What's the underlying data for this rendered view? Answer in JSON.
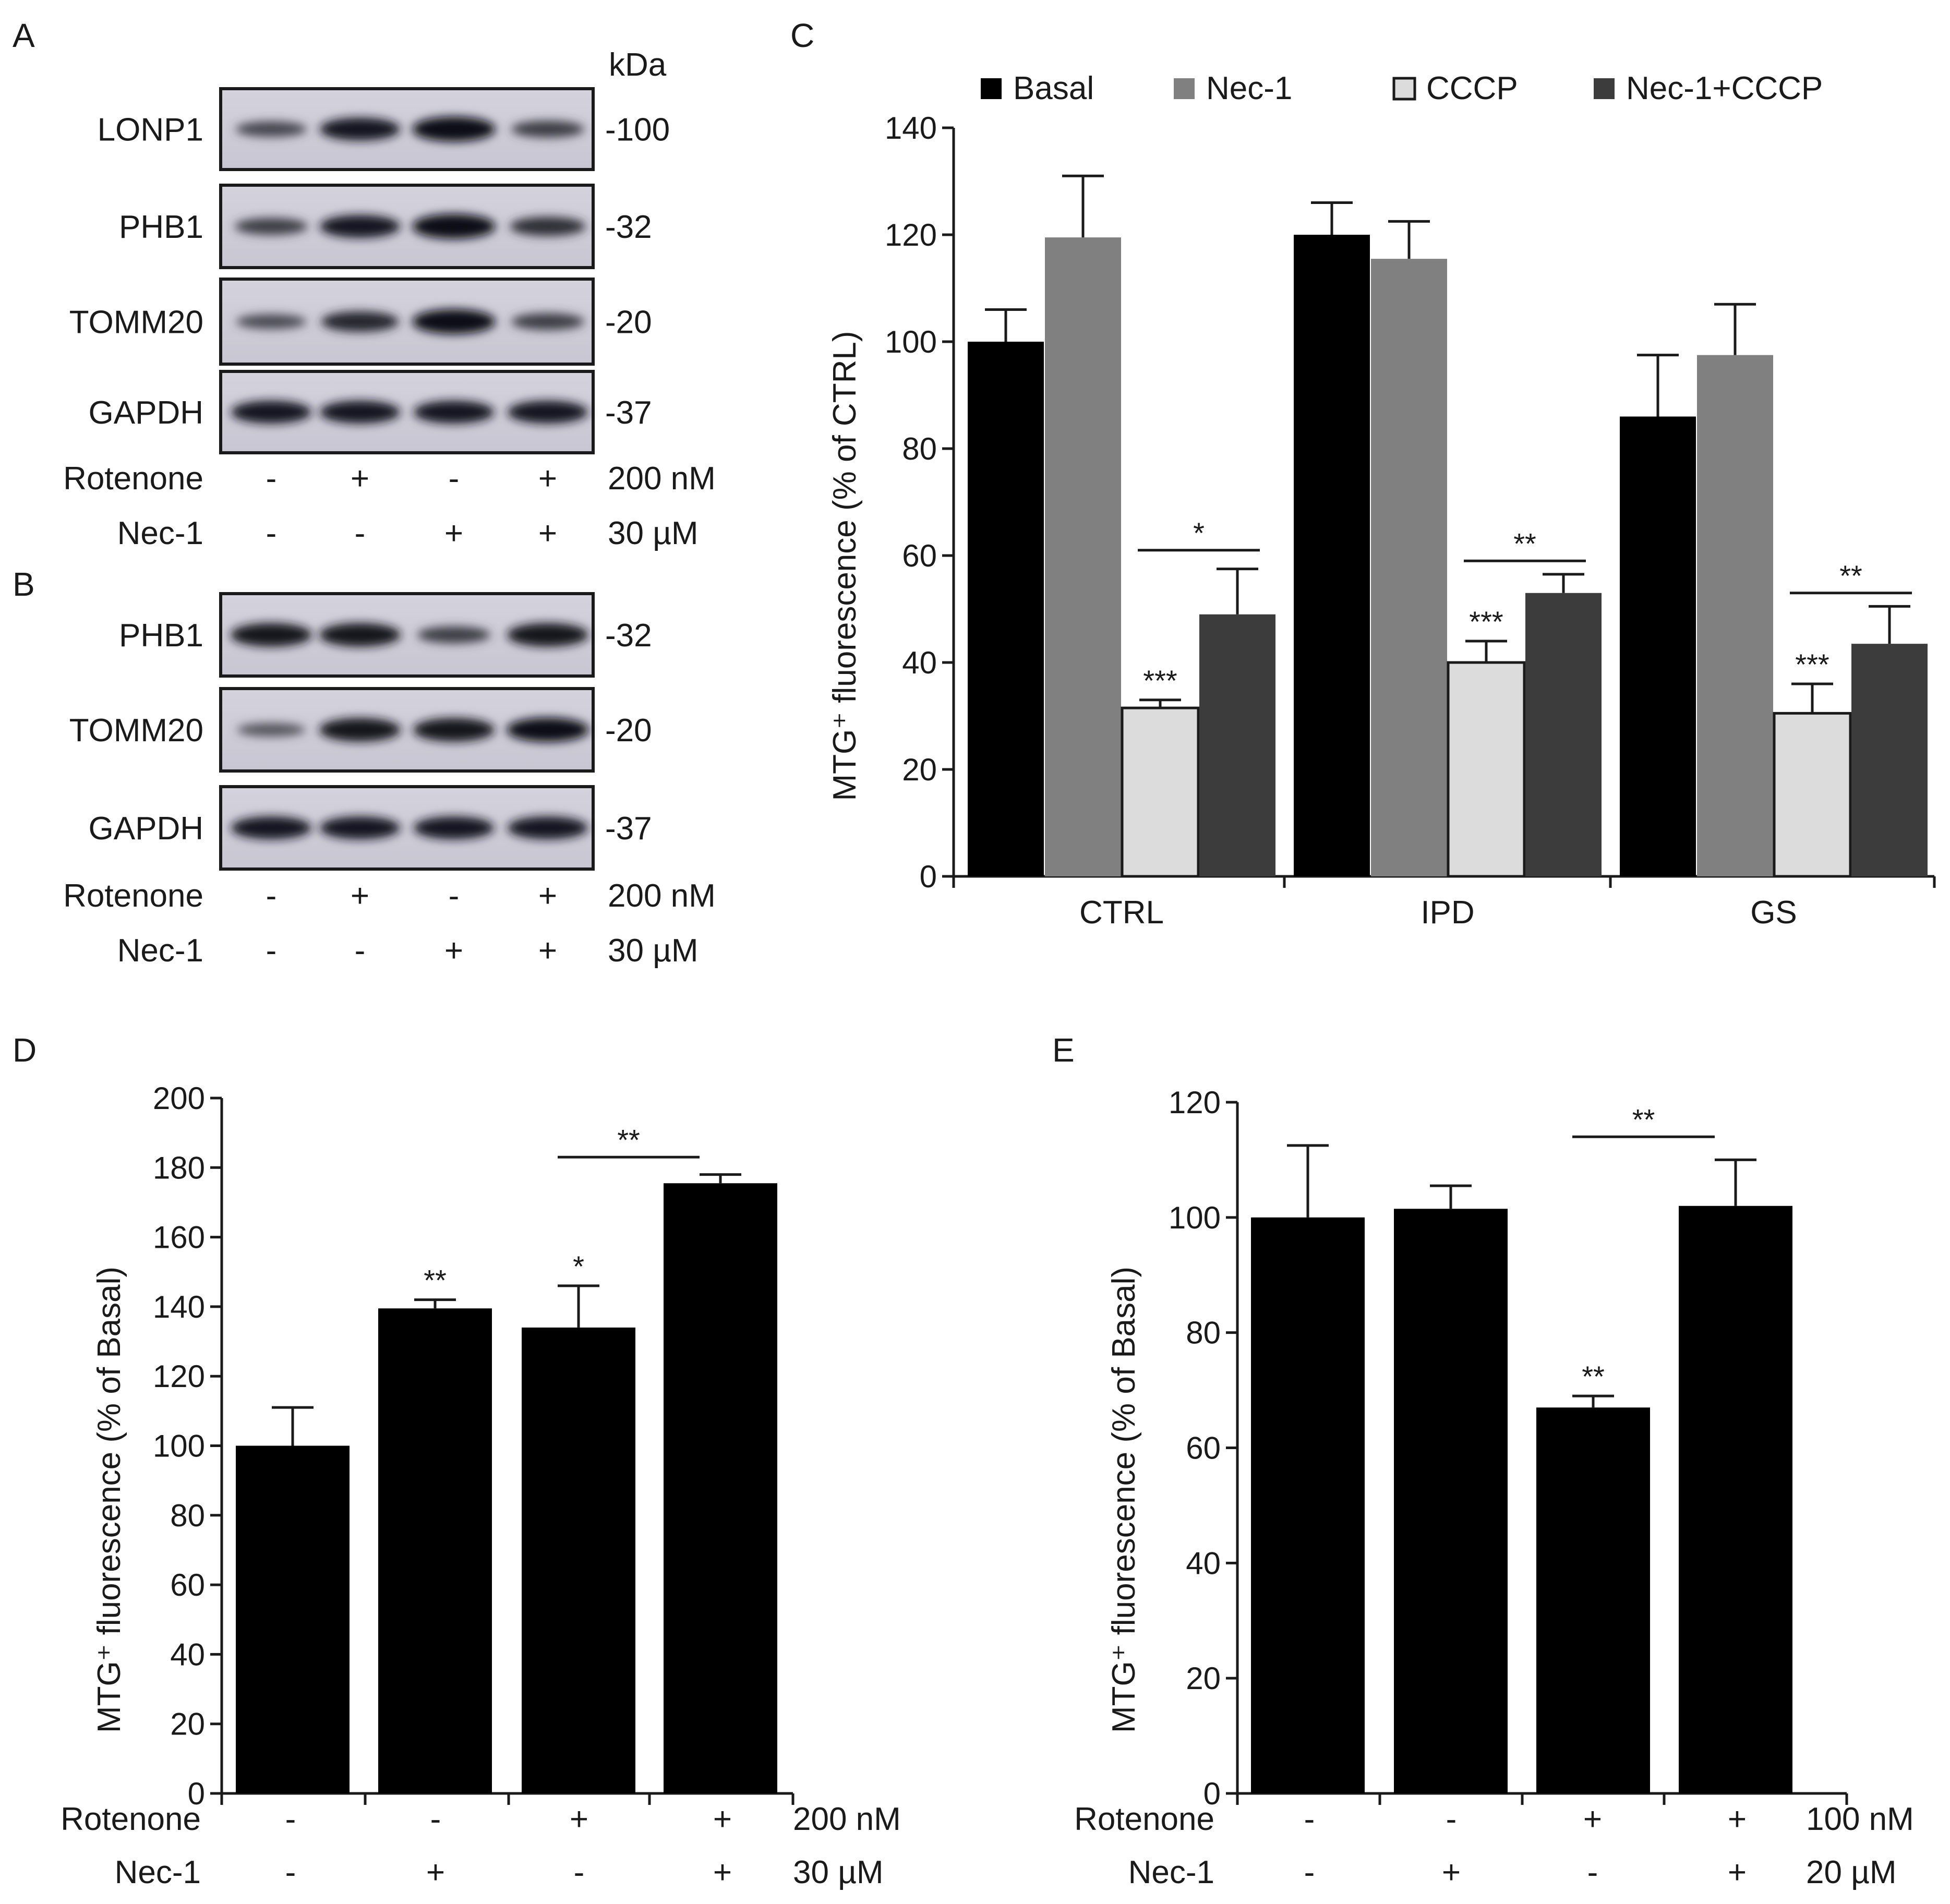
{
  "panel_letters": {
    "a": "A",
    "b": "B",
    "c": "C",
    "d": "D",
    "e": "E"
  },
  "blot_a": {
    "unit_label": "kDa",
    "bands": [
      {
        "label": "LONP1",
        "mw": "-100",
        "intensity": [
          0.35,
          0.85,
          1.0,
          0.45
        ]
      },
      {
        "label": "PHB1",
        "mw": "-32",
        "intensity": [
          0.45,
          0.85,
          1.0,
          0.6
        ]
      },
      {
        "label": "TOMM20",
        "mw": "-20",
        "intensity": [
          0.3,
          0.7,
          1.0,
          0.45
        ]
      },
      {
        "label": "GAPDH",
        "mw": "-37",
        "intensity": [
          0.85,
          0.85,
          0.85,
          0.85
        ]
      }
    ],
    "treatments": [
      {
        "label": "Rotenone",
        "signs": [
          "-",
          "+",
          "-",
          "+"
        ],
        "dose": "200 nM"
      },
      {
        "label": "Nec-1",
        "signs": [
          "-",
          "-",
          "+",
          "+"
        ],
        "dose": "30 µM"
      }
    ]
  },
  "blot_b": {
    "bands": [
      {
        "label": "PHB1",
        "mw": "-32",
        "intensity": [
          0.9,
          0.9,
          0.45,
          0.9
        ]
      },
      {
        "label": "TOMM20",
        "mw": "-20",
        "intensity": [
          0.2,
          0.9,
          0.9,
          0.95
        ]
      },
      {
        "label": "GAPDH",
        "mw": "-37",
        "intensity": [
          0.85,
          0.85,
          0.85,
          0.85
        ]
      }
    ],
    "treatments": [
      {
        "label": "Rotenone",
        "signs": [
          "-",
          "+",
          "-",
          "+"
        ],
        "dose": "200 nM"
      },
      {
        "label": "Nec-1",
        "signs": [
          "-",
          "-",
          "+",
          "+"
        ],
        "dose": "30 µM"
      }
    ]
  },
  "chart_data": [
    {
      "panel": "C",
      "type": "bar",
      "ylabel": "MTG⁺ fluorescence (% of CTRL)",
      "ylim": [
        0,
        140
      ],
      "yticks": [
        0,
        20,
        40,
        60,
        80,
        100,
        120,
        140
      ],
      "categories": [
        "CTRL",
        "IPD",
        "GS"
      ],
      "legend_position": "top",
      "series": [
        {
          "name": "Basal",
          "color": "#000000",
          "values": [
            100,
            120,
            86
          ],
          "errors": [
            6,
            6,
            11.5
          ]
        },
        {
          "name": "Nec-1",
          "color": "#808080",
          "values": [
            119.5,
            115.5,
            97.5
          ],
          "errors": [
            11.5,
            7,
            9.5
          ]
        },
        {
          "name": "CCCP",
          "color": "#dcdcdc",
          "values": [
            31.5,
            40,
            30.5
          ],
          "errors": [
            1.5,
            4,
            5.5
          ]
        },
        {
          "name": "Nec-1+CCCP",
          "color": "#3c3c3c",
          "values": [
            49,
            53,
            43.5
          ],
          "errors": [
            8.5,
            3.5,
            7
          ]
        }
      ],
      "annotations": [
        {
          "group": 0,
          "series": 2,
          "text": "***"
        },
        {
          "group": 1,
          "series": 2,
          "text": "***"
        },
        {
          "group": 2,
          "series": 2,
          "text": "***"
        }
      ],
      "brackets": [
        {
          "group": 0,
          "from_series": 2,
          "to_series": 3,
          "y": 61,
          "text": "*"
        },
        {
          "group": 1,
          "from_series": 2,
          "to_series": 3,
          "y": 59,
          "text": "**"
        },
        {
          "group": 2,
          "from_series": 2,
          "to_series": 3,
          "y": 53,
          "text": "**"
        }
      ]
    },
    {
      "panel": "D",
      "type": "bar",
      "ylabel": "MTG⁺ fluorescence (% of Basal)",
      "ylim": [
        0,
        200
      ],
      "yticks": [
        0,
        20,
        40,
        60,
        80,
        100,
        120,
        140,
        160,
        180,
        200
      ],
      "values": [
        100,
        139.5,
        134,
        175.5
      ],
      "errors": [
        11,
        2.5,
        12,
        2.5
      ],
      "color": "#000000",
      "annotations": [
        "",
        "**",
        "*",
        ""
      ],
      "brackets": [
        {
          "from": 2,
          "to": 3,
          "y": 183,
          "text": "**"
        }
      ],
      "treatments": [
        {
          "label": "Rotenone",
          "signs": [
            "-",
            "-",
            "+",
            "+"
          ],
          "dose": "200 nM"
        },
        {
          "label": "Nec-1",
          "signs": [
            "-",
            "+",
            "-",
            "+"
          ],
          "dose": "30 µM"
        }
      ]
    },
    {
      "panel": "E",
      "type": "bar",
      "ylabel": "MTG⁺ fluorescence (% of Basal)",
      "ylim": [
        0,
        120
      ],
      "yticks": [
        0,
        20,
        40,
        60,
        80,
        100,
        120
      ],
      "values": [
        100,
        101.5,
        67,
        102
      ],
      "errors": [
        12.5,
        4,
        2,
        8
      ],
      "color": "#000000",
      "annotations": [
        "",
        "",
        "**",
        ""
      ],
      "brackets": [
        {
          "from": 2,
          "to": 3,
          "y": 114,
          "text": "**"
        }
      ],
      "treatments": [
        {
          "label": "Rotenone",
          "signs": [
            "-",
            "-",
            "+",
            "+"
          ],
          "dose": "100 nM"
        },
        {
          "label": "Nec-1",
          "signs": [
            "-",
            "+",
            "-",
            "+"
          ],
          "dose": "20 µM"
        }
      ]
    }
  ]
}
